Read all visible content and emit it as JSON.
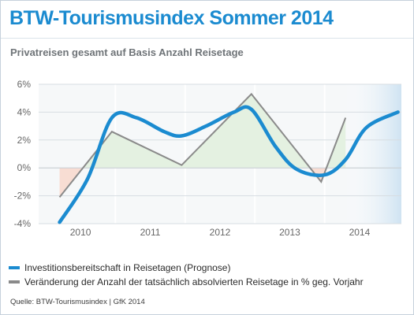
{
  "header": {
    "title": "BTW-Tourismusindex Sommer 2014",
    "subtitle": "Privatreisen gesamt auf Basis Anzahl Reisetage"
  },
  "source": "Quelle: BTW-Tourismusindex | GfK 2014",
  "colors": {
    "accent": "#1b8bd0",
    "series_blue": "#1b8bd0",
    "series_gray": "#8a8a8a",
    "fill_positive": "#e4f1e1",
    "fill_negative": "#f8ddd3",
    "plot_bg": "#f6f8f9"
  },
  "chart_data": {
    "type": "line",
    "ylim": [
      -4,
      6
    ],
    "yticks": [
      6,
      4,
      2,
      0,
      -2,
      -4
    ],
    "ytick_labels": [
      "6%",
      "4%",
      "2%",
      "0%",
      "-2%",
      "-4%"
    ],
    "xlim": [
      2009.4,
      2014.6
    ],
    "xticks": [
      2010,
      2011,
      2012,
      2013,
      2014
    ],
    "xtick_labels": [
      "2010",
      "2011",
      "2012",
      "2013",
      "2014"
    ],
    "grid": true,
    "legend_placement": "bottom",
    "series": [
      {
        "name": "Investitionsbereitschaft in Reisetagen (Prognose)",
        "color": "#1b8bd0",
        "style": "smooth-thick",
        "x": [
          2009.7,
          2010.1,
          2010.45,
          2010.8,
          2011.2,
          2011.45,
          2011.8,
          2012.2,
          2012.45,
          2012.8,
          2013.1,
          2013.5,
          2013.8,
          2014.1,
          2014.55
        ],
        "y": [
          -3.9,
          -0.8,
          3.6,
          3.6,
          2.6,
          2.3,
          3.0,
          4.0,
          4.2,
          1.5,
          -0.1,
          -0.5,
          0.6,
          2.9,
          4.0
        ]
      },
      {
        "name": "Veränderung der Anzahl der tatsächlich absolvierten Reisetage in % geg. Vorjahr",
        "color": "#8a8a8a",
        "style": "straight-thin",
        "x": [
          2009.7,
          2010.45,
          2011.45,
          2012.45,
          2013.45,
          2013.8
        ],
        "y": [
          -2.1,
          2.6,
          0.2,
          5.3,
          -1.0,
          3.6
        ]
      }
    ]
  }
}
